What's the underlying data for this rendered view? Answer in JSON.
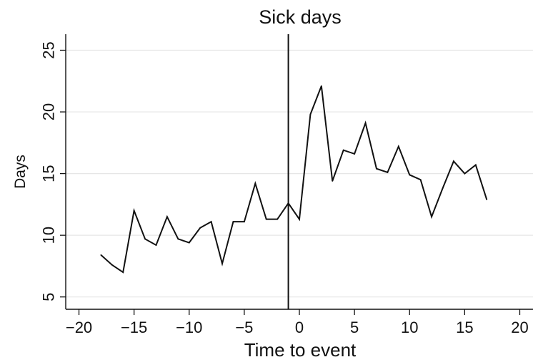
{
  "chart_data": {
    "type": "line",
    "title": "Sick days",
    "xlabel": "Time to event",
    "ylabel": "Days",
    "xlim": [
      -21.2,
      21.2
    ],
    "ylim": [
      4.0,
      26.3
    ],
    "x_ticks": [
      -20,
      -15,
      -10,
      -5,
      0,
      5,
      10,
      15,
      20
    ],
    "x_tick_labels": [
      "−20",
      "−15",
      "−10",
      "−5",
      "0",
      "5",
      "10",
      "15",
      "20"
    ],
    "y_ticks": [
      5,
      10,
      15,
      20,
      25
    ],
    "y_tick_labels": [
      "5",
      "10",
      "15",
      "20",
      "25"
    ],
    "grid": true,
    "vertical_reference_x": -1,
    "line_color": "#111111",
    "series": [
      {
        "x": [
          -18,
          -17,
          -16,
          -15,
          -14,
          -13,
          -12,
          -11,
          -10,
          -9,
          -8,
          -7,
          -6,
          -5,
          -4,
          -3,
          -2,
          -1,
          0,
          1,
          2,
          3,
          4,
          5,
          6,
          7,
          8,
          9,
          10,
          11,
          12,
          13,
          14,
          15,
          16,
          17
        ],
        "values": [
          8.4,
          7.6,
          7.0,
          12.0,
          9.7,
          9.2,
          11.5,
          9.7,
          9.4,
          10.6,
          11.1,
          7.7,
          11.1,
          11.1,
          14.2,
          11.3,
          11.3,
          12.6,
          11.3,
          19.8,
          22.1,
          14.4,
          16.9,
          16.6,
          19.1,
          15.4,
          15.1,
          17.2,
          14.9,
          14.5,
          11.5,
          13.8,
          16.0,
          15.0,
          15.7,
          12.9
        ]
      }
    ]
  }
}
